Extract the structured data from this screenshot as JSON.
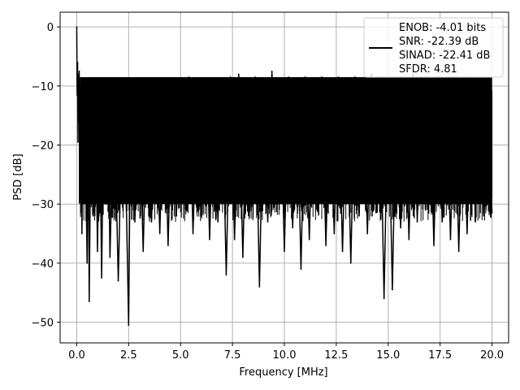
{
  "chart_data": {
    "type": "line",
    "title": "",
    "xlabel": "Frequency [MHz]",
    "ylabel": "PSD [dB]",
    "xlim": [
      -0.8,
      20.8
    ],
    "ylim": [
      -53.5,
      2.5
    ],
    "xticks": [
      0.0,
      2.5,
      5.0,
      7.5,
      10.0,
      12.5,
      15.0,
      17.5,
      20.0
    ],
    "xtick_labels": [
      "0.0",
      "2.5",
      "5.0",
      "7.5",
      "10.0",
      "12.5",
      "15.0",
      "17.5",
      "20.0"
    ],
    "yticks": [
      0,
      -10,
      -20,
      -30,
      -40,
      -50
    ],
    "ytick_labels": [
      "0",
      "−10",
      "−20",
      "−30",
      "−40",
      "−50"
    ],
    "grid": true,
    "legend_placement": "top-right",
    "legend_entries": [
      "ENOB: -4.01 bits",
      "SNR: -22.39 dB",
      "SINAD: -22.41 dB",
      "SFDR: 4.81"
    ],
    "line_color": "#000000",
    "series": [
      {
        "x": [
          0.0,
          0.02,
          0.04,
          0.06,
          0.08,
          0.1,
          0.12,
          0.15,
          0.2,
          0.25,
          0.3,
          0.35,
          0.4,
          0.5,
          0.55,
          0.6,
          0.7,
          0.8,
          0.9,
          1.0,
          1.1,
          1.2,
          1.3,
          1.4,
          1.5,
          1.6,
          1.8,
          2.0,
          2.2,
          2.4,
          2.5,
          2.6,
          2.8,
          3.0,
          3.2,
          3.4,
          3.6,
          3.8,
          4.0,
          4.2,
          4.4,
          4.6,
          4.8,
          5.0,
          5.2,
          5.4,
          5.6,
          5.8,
          6.0,
          6.2,
          6.4,
          6.6,
          6.8,
          7.0,
          7.2,
          7.4,
          7.6,
          7.8,
          8.0,
          8.2,
          8.4,
          8.6,
          8.8,
          9.0,
          9.2,
          9.4,
          9.6,
          9.8,
          10.0,
          10.2,
          10.4,
          10.6,
          10.8,
          11.0,
          11.2,
          11.4,
          11.6,
          11.8,
          12.0,
          12.2,
          12.4,
          12.6,
          12.8,
          13.0,
          13.2,
          13.4,
          13.6,
          13.8,
          14.0,
          14.2,
          14.4,
          14.6,
          14.8,
          15.0,
          15.2,
          15.4,
          15.6,
          15.8,
          16.0,
          16.2,
          16.4,
          16.6,
          16.8,
          17.0,
          17.2,
          17.4,
          17.6,
          17.8,
          18.0,
          18.2,
          18.4,
          18.6,
          18.8,
          19.0,
          19.2,
          19.4,
          19.6,
          19.8,
          20.0
        ],
        "y": [
          0.0,
          -11.5,
          -6.0,
          -19.5,
          -8.0,
          -16.0,
          -7.5,
          -22.0,
          -10.0,
          -35.0,
          -12.0,
          -28.0,
          -14.0,
          -40.0,
          -13.5,
          -46.5,
          -11.0,
          -32.0,
          -12.5,
          -38.0,
          -13.0,
          -42.5,
          -11.5,
          -30.0,
          -12.0,
          -39.0,
          -10.5,
          -43.0,
          -12.0,
          -32.0,
          -50.5,
          -11.0,
          -33.0,
          -10.0,
          -38.0,
          -9.5,
          -33.0,
          -10.0,
          -35.0,
          -9.0,
          -37.0,
          -10.0,
          -32.0,
          -9.5,
          -30.0,
          -8.5,
          -35.0,
          -9.0,
          -32.0,
          -9.5,
          -36.0,
          -10.0,
          -33.0,
          -9.0,
          -42.0,
          -8.5,
          -36.0,
          -8.0,
          -39.0,
          -9.0,
          -31.0,
          -8.5,
          -44.0,
          -9.0,
          -33.0,
          -7.5,
          -30.0,
          -9.0,
          -38.0,
          -8.5,
          -34.0,
          -9.0,
          -41.0,
          -8.5,
          -36.0,
          -9.0,
          -31.0,
          -8.5,
          -37.0,
          -9.5,
          -35.0,
          -8.5,
          -38.0,
          -9.0,
          -40.0,
          -8.5,
          -32.0,
          -9.0,
          -35.0,
          -8.0,
          -30.0,
          -8.5,
          -46.0,
          -9.0,
          -44.5,
          -8.5,
          -34.0,
          -9.0,
          -36.0,
          -8.0,
          -33.0,
          -8.5,
          -31.0,
          -9.0,
          -37.0,
          -8.5,
          -33.0,
          -9.0,
          -36.0,
          -8.5,
          -38.0,
          -9.0,
          -35.0,
          -8.5,
          -33.0,
          -9.0,
          -32.0,
          -11.0,
          -31.5
        ]
      }
    ]
  }
}
